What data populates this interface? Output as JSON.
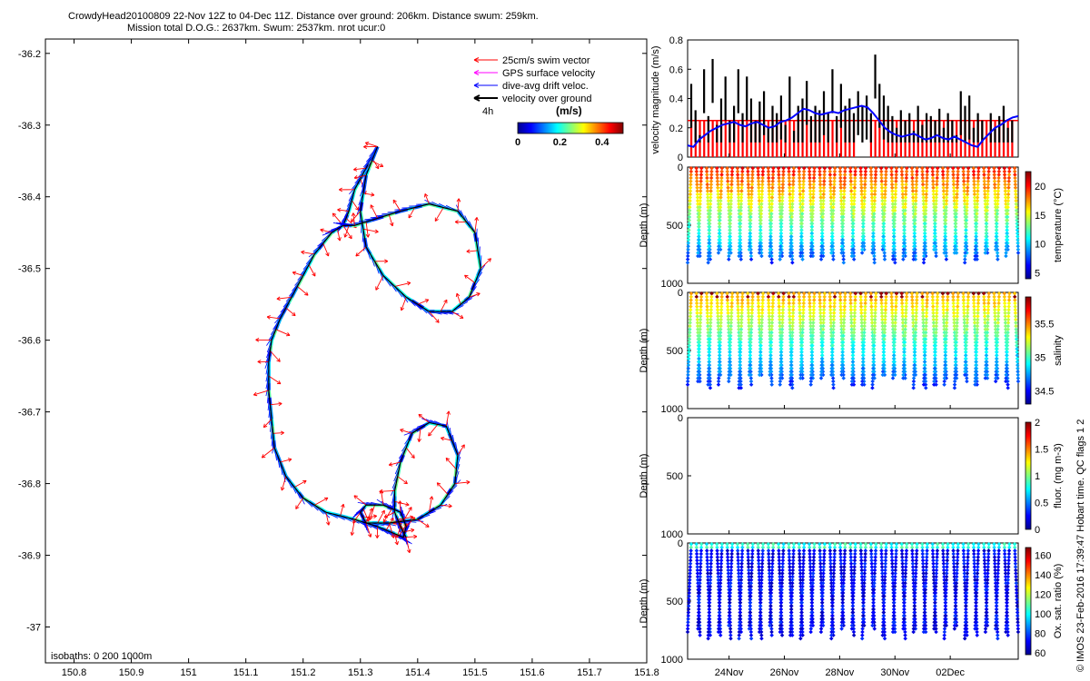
{
  "title_line1": "CrowdyHead20100809 22-Nov 12Z to 04-Dec 11Z. Distance over ground: 206km. Distance swum: 259km.",
  "title_line2": "Mission total D.O.G.: 2637km. Swum: 2537km. nrot ucur:0",
  "credit": "© IMOS 23-Feb-2016 17:39:47 Hobart time. QC flags 1  2",
  "colors": {
    "swim": "#ff0000",
    "gps": "#ff00ff",
    "drift": "#0000ff",
    "ground": "#000000",
    "speed_red": "#ff0000",
    "speed_blue": "#0000ff"
  },
  "chart_data": [
    {
      "type": "scatter",
      "name_hint": "track map",
      "xlim": [
        150.75,
        151.8
      ],
      "ylim": [
        -37.05,
        -36.18
      ],
      "xticks": [
        "150.8",
        "150.9",
        "151",
        "151.1",
        "151.2",
        "151.3",
        "151.4",
        "151.5",
        "151.6",
        "151.7",
        "151.8"
      ],
      "yticks": [
        "-36.2",
        "-36.3",
        "-36.4",
        "-36.5",
        "-36.6",
        "-36.7",
        "-36.8",
        "-36.9",
        "-37"
      ],
      "legend": [
        "25cm/s swim vector",
        "GPS surface velocity",
        "dive-avg drift veloc.",
        "velocity over ground"
      ],
      "legend_extra": "4h",
      "colorbar_title": "(m/s)",
      "colorbar_ticks": [
        "0",
        "0.2",
        "0.4"
      ],
      "colorbar_range": [
        0,
        0.5
      ],
      "isobaths_label": "isobaths: 0   200   1000m",
      "track": [
        [
          151.33,
          -36.33
        ],
        [
          151.31,
          -36.36
        ],
        [
          151.29,
          -36.39
        ],
        [
          151.28,
          -36.42
        ],
        [
          151.27,
          -36.44
        ],
        [
          151.25,
          -36.45
        ],
        [
          151.22,
          -36.48
        ],
        [
          151.2,
          -36.51
        ],
        [
          151.18,
          -36.54
        ],
        [
          151.16,
          -36.57
        ],
        [
          151.145,
          -36.6
        ],
        [
          151.14,
          -36.63
        ],
        [
          151.14,
          -36.67
        ],
        [
          151.145,
          -36.71
        ],
        [
          151.15,
          -36.75
        ],
        [
          151.17,
          -36.79
        ],
        [
          151.2,
          -36.82
        ],
        [
          151.24,
          -36.84
        ],
        [
          151.29,
          -36.85
        ],
        [
          151.33,
          -36.86
        ],
        [
          151.36,
          -36.87
        ],
        [
          151.375,
          -36.875
        ],
        [
          151.38,
          -36.86
        ],
        [
          151.37,
          -36.84
        ],
        [
          151.34,
          -36.83
        ],
        [
          151.31,
          -36.83
        ],
        [
          151.3,
          -36.84
        ],
        [
          151.31,
          -36.855
        ],
        [
          151.35,
          -36.855
        ],
        [
          151.4,
          -36.85
        ],
        [
          151.44,
          -36.83
        ],
        [
          151.465,
          -36.8
        ],
        [
          151.47,
          -36.76
        ],
        [
          151.45,
          -36.72
        ],
        [
          151.42,
          -36.715
        ],
        [
          151.39,
          -36.73
        ],
        [
          151.37,
          -36.77
        ],
        [
          151.36,
          -36.81
        ],
        [
          151.36,
          -36.84
        ],
        [
          151.37,
          -36.86
        ],
        [
          151.38,
          -36.875
        ]
      ],
      "loop2": [
        [
          151.33,
          -36.33
        ],
        [
          151.31,
          -36.37
        ],
        [
          151.3,
          -36.42
        ],
        [
          151.31,
          -36.47
        ],
        [
          151.34,
          -36.51
        ],
        [
          151.38,
          -36.54
        ],
        [
          151.42,
          -36.56
        ],
        [
          151.46,
          -36.56
        ],
        [
          151.49,
          -36.54
        ],
        [
          151.51,
          -36.5
        ],
        [
          151.5,
          -36.45
        ],
        [
          151.47,
          -36.42
        ],
        [
          151.42,
          -36.41
        ],
        [
          151.37,
          -36.42
        ],
        [
          151.33,
          -36.43
        ],
        [
          151.29,
          -36.44
        ],
        [
          151.27,
          -36.44
        ]
      ]
    },
    {
      "type": "bar",
      "name_hint": "velocity",
      "ylabel": "velocity magnitude (m/s)",
      "ylim": [
        0,
        0.8
      ],
      "yticks": [
        "0",
        "0.2",
        "0.4",
        "0.6",
        "0.8"
      ],
      "x_range_days": [
        "22 Nov 12Z",
        "04 Dec 11Z"
      ],
      "swim_ref": 0.25,
      "ground_bars": [
        0.5,
        0.32,
        0.15,
        0.6,
        0.28,
        0.67,
        0.22,
        0.4,
        0.55,
        0.25,
        0.35,
        0.6,
        0.3,
        0.55,
        0.4,
        0.25,
        0.38,
        0.45,
        0.2,
        0.35,
        0.3,
        0.42,
        0.22,
        0.55,
        0.18,
        0.35,
        0.4,
        0.52,
        0.28,
        0.35,
        0.32,
        0.45,
        0.3,
        0.6,
        0.28,
        0.5,
        0.35,
        0.4,
        0.3,
        0.45,
        0.35,
        0.42,
        0.3,
        0.7,
        0.5,
        0.42,
        0.35,
        0.28,
        0.2,
        0.32,
        0.25,
        0.3,
        0.18,
        0.35,
        0.22,
        0.3,
        0.28,
        0.25,
        0.33,
        0.2,
        0.3,
        0.25,
        0.15,
        0.45,
        0.35,
        0.42,
        0.2,
        0.3,
        0.25,
        0.1,
        0.3,
        0.2,
        0.28,
        0.35,
        0.2,
        0.25
      ],
      "drift": [
        0.08,
        0.07,
        0.12,
        0.15,
        0.18,
        0.2,
        0.22,
        0.23,
        0.24,
        0.22,
        0.21,
        0.23,
        0.24,
        0.22,
        0.2,
        0.21,
        0.24,
        0.25,
        0.27,
        0.3,
        0.33,
        0.32,
        0.3,
        0.29,
        0.3,
        0.31,
        0.3,
        0.32,
        0.33,
        0.34,
        0.35,
        0.34,
        0.3,
        0.25,
        0.2,
        0.17,
        0.15,
        0.14,
        0.15,
        0.16,
        0.14,
        0.12,
        0.13,
        0.15,
        0.13,
        0.12,
        0.14,
        0.12,
        0.1,
        0.08,
        0.07,
        0.12,
        0.16,
        0.2,
        0.22,
        0.25,
        0.27,
        0.28
      ]
    },
    {
      "type": "heatmap",
      "name_hint": "temperature",
      "ylabel": "Depth (m)",
      "ylim": [
        1000,
        0
      ],
      "yticks": [
        "0",
        "500",
        "1000"
      ],
      "colorbar_label": "temperature (°C)",
      "colorbar_ticks": [
        "5",
        "10",
        "15",
        "20"
      ],
      "colorbar_range": [
        4,
        22.5
      ]
    },
    {
      "type": "heatmap",
      "name_hint": "salinity",
      "ylabel": "Depth (m)",
      "ylim": [
        1000,
        0
      ],
      "yticks": [
        "0",
        "500",
        "1000"
      ],
      "colorbar_label": "salinity",
      "colorbar_ticks": [
        "34.5",
        "35",
        "35.5"
      ],
      "colorbar_range": [
        34.3,
        35.9
      ]
    },
    {
      "type": "heatmap",
      "name_hint": "fluorescence",
      "ylabel": "Depth (m)",
      "ylim": [
        1000,
        0
      ],
      "yticks": [
        "0",
        "500",
        "1000"
      ],
      "colorbar_label": "fluor. (mg m-3)",
      "colorbar_ticks": [
        "0",
        "0.5",
        "1",
        "1.5",
        "2"
      ],
      "colorbar_range": [
        0,
        2
      ]
    },
    {
      "type": "heatmap",
      "name_hint": "oxygen",
      "ylabel": "Depth (m)",
      "ylim": [
        1000,
        0
      ],
      "yticks": [
        "0",
        "500",
        "1000"
      ],
      "colorbar_label": "Ox. sat. ratio (%)",
      "colorbar_ticks": [
        "60",
        "80",
        "100",
        "120",
        "140",
        "160"
      ],
      "colorbar_range": [
        58,
        168
      ]
    }
  ],
  "time_axis": {
    "ticks": [
      "24Nov",
      "26Nov",
      "28Nov",
      "30Nov",
      "02Dec"
    ],
    "tick_day_offsets": [
      1.5,
      3.5,
      5.5,
      7.5,
      9.5
    ],
    "span_days": 11.96
  }
}
